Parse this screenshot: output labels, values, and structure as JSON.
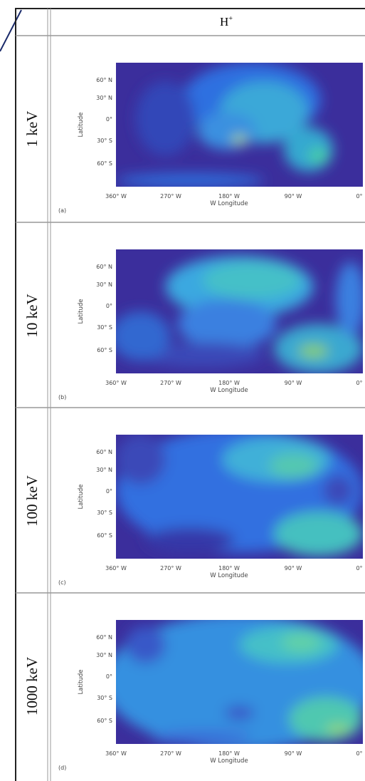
{
  "header": {
    "title": "H",
    "title_sup": "+"
  },
  "rows": [
    {
      "label": "1 keV",
      "panel": "(a)"
    },
    {
      "label": "10 keV",
      "panel": "(b)"
    },
    {
      "label": "100 keV",
      "panel": "(c)"
    },
    {
      "label": "1000 keV",
      "panel": "(d)"
    }
  ],
  "axes": {
    "y_label": "Latitude",
    "lat_ticks": [
      "60° N",
      "30° N",
      "0°",
      "30° S",
      "60° S"
    ],
    "x_label": "W Longitude",
    "lon_ticks": [
      "360° W",
      "270° W",
      "180° W",
      "90° W",
      "0°"
    ]
  }
}
